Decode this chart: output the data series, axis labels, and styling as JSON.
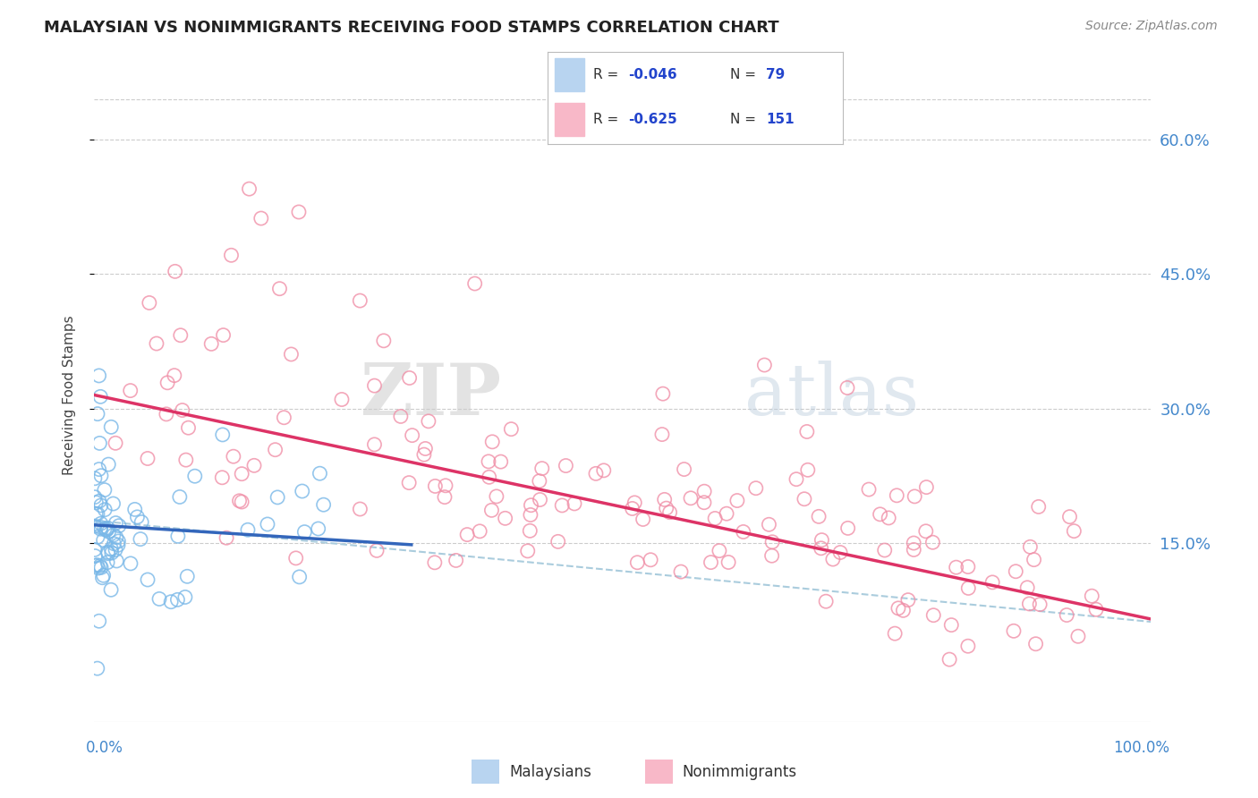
{
  "title": "MALAYSIAN VS NONIMMIGRANTS RECEIVING FOOD STAMPS CORRELATION CHART",
  "source": "Source: ZipAtlas.com",
  "ylabel": "Receiving Food Stamps",
  "y_ticks": [
    0.15,
    0.3,
    0.45,
    0.6
  ],
  "y_tick_labels": [
    "15.0%",
    "30.0%",
    "45.0%",
    "60.0%"
  ],
  "xlim": [
    0.0,
    1.0
  ],
  "ylim": [
    -0.05,
    0.68
  ],
  "malaysian_R": -0.046,
  "malaysian_N": 79,
  "nonimmigrant_R": -0.625,
  "nonimmigrant_N": 151,
  "blue_scatter_color": "#7ab8e8",
  "pink_scatter_color": "#f090a8",
  "blue_line_color": "#3366bb",
  "pink_line_color": "#dd3366",
  "dashed_line_color": "#aaccdd",
  "watermark_zip": "ZIP",
  "watermark_atlas": "atlas",
  "background_color": "#ffffff",
  "grid_color": "#cccccc",
  "legend_r_color": "#2244cc",
  "legend_text_color": "#333333",
  "tick_color": "#4488cc",
  "title_color": "#222222",
  "source_color": "#888888"
}
